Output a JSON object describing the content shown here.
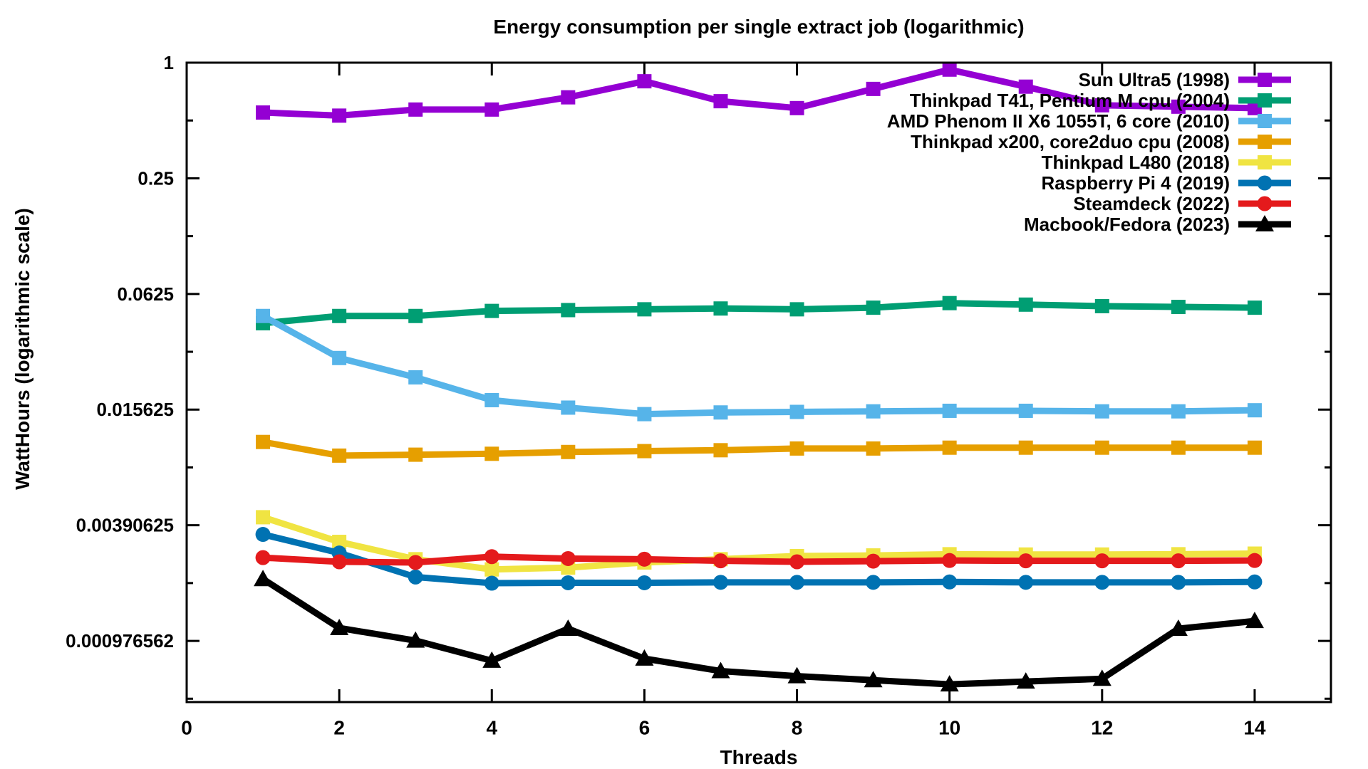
{
  "chart_data": {
    "type": "line",
    "title": "Energy consumption per single extract job (logarithmic)",
    "xlabel": "Threads",
    "ylabel": "WattHours (logarithmic scale)",
    "legend_position": "top-right-inside",
    "grid": false,
    "background_color": "#ffffff",
    "axis_color": "#000000",
    "x_range": [
      0,
      15
    ],
    "y_top": 1,
    "y_bottom": 0.000469,
    "x_ticks": [
      {
        "label": "0",
        "value": 0
      },
      {
        "label": "2",
        "value": 2
      },
      {
        "label": "4",
        "value": 4
      },
      {
        "label": "6",
        "value": 6
      },
      {
        "label": "8",
        "value": 8
      },
      {
        "label": "10",
        "value": 10
      },
      {
        "label": "12",
        "value": 12
      },
      {
        "label": "14",
        "value": 14
      }
    ],
    "y_ticks": [
      {
        "label": "1",
        "value": 1
      },
      {
        "label": "0.25",
        "value": 0.25
      },
      {
        "label": "0.0625",
        "value": 0.0625
      },
      {
        "label": "0.015625",
        "value": 0.015625
      },
      {
        "label": "0.00390625",
        "value": 0.00390625
      },
      {
        "label": "0.000976562",
        "value": 0.000976562
      }
    ],
    "y_minor_tick_factor": 0.5,
    "threads": [
      1,
      2,
      3,
      4,
      5,
      6,
      7,
      8,
      9,
      10,
      11,
      12,
      13,
      14
    ],
    "series": [
      {
        "name": "Sun Ultra5 (1998)",
        "color": "#9400d3",
        "marker": "square",
        "values": [
          0.55,
          0.53,
          0.57,
          0.57,
          0.66,
          0.8,
          0.63,
          0.58,
          0.73,
          0.92,
          0.75,
          0.6,
          0.59,
          0.58
        ]
      },
      {
        "name": "Thinkpad T41, Pentium M cpu (2004)",
        "color": "#009e73",
        "marker": "square",
        "values": [
          0.044,
          0.048,
          0.048,
          0.051,
          0.0515,
          0.052,
          0.0525,
          0.052,
          0.053,
          0.056,
          0.055,
          0.054,
          0.0535,
          0.053
        ]
      },
      {
        "name": "AMD Phenom II X6 1055T, 6 core (2010)",
        "color": "#56b4e9",
        "marker": "square",
        "values": [
          0.048,
          0.029,
          0.023,
          0.0175,
          0.016,
          0.0148,
          0.0151,
          0.0152,
          0.0153,
          0.0154,
          0.0154,
          0.0153,
          0.0153,
          0.0155
        ]
      },
      {
        "name": "Thinkpad x200, core2duo cpu (2008)",
        "color": "#e69f00",
        "marker": "square",
        "values": [
          0.0106,
          0.009,
          0.0091,
          0.0092,
          0.0094,
          0.0095,
          0.0096,
          0.0098,
          0.0098,
          0.0099,
          0.0099,
          0.0099,
          0.0099,
          0.0099
        ]
      },
      {
        "name": "Thinkpad L480 (2018)",
        "color": "#f0e442",
        "marker": "square",
        "values": [
          0.0043,
          0.0032,
          0.0026,
          0.0023,
          0.00235,
          0.0025,
          0.0026,
          0.0027,
          0.00272,
          0.00276,
          0.00275,
          0.00275,
          0.00276,
          0.00278
        ]
      },
      {
        "name": "Raspberry Pi 4 (2019)",
        "color": "#0072b2",
        "marker": "circle",
        "values": [
          0.0035,
          0.0028,
          0.0021,
          0.00195,
          0.00196,
          0.00196,
          0.00197,
          0.00197,
          0.00197,
          0.00198,
          0.00197,
          0.00197,
          0.00197,
          0.00198
        ]
      },
      {
        "name": "Steamdeck (2022)",
        "color": "#e41a1c",
        "marker": "circle",
        "values": [
          0.00265,
          0.00252,
          0.0025,
          0.00268,
          0.00262,
          0.0026,
          0.00255,
          0.00252,
          0.00254,
          0.00256,
          0.00255,
          0.00255,
          0.00255,
          0.00256
        ]
      },
      {
        "name": "Macbook/Fedora (2023)",
        "color": "#000000",
        "marker": "triangle",
        "values": [
          0.00205,
          0.00114,
          0.00098,
          0.00077,
          0.00113,
          0.00079,
          0.00068,
          0.00064,
          0.00061,
          0.00058,
          0.0006,
          0.00062,
          0.00113,
          0.00124
        ]
      }
    ]
  }
}
